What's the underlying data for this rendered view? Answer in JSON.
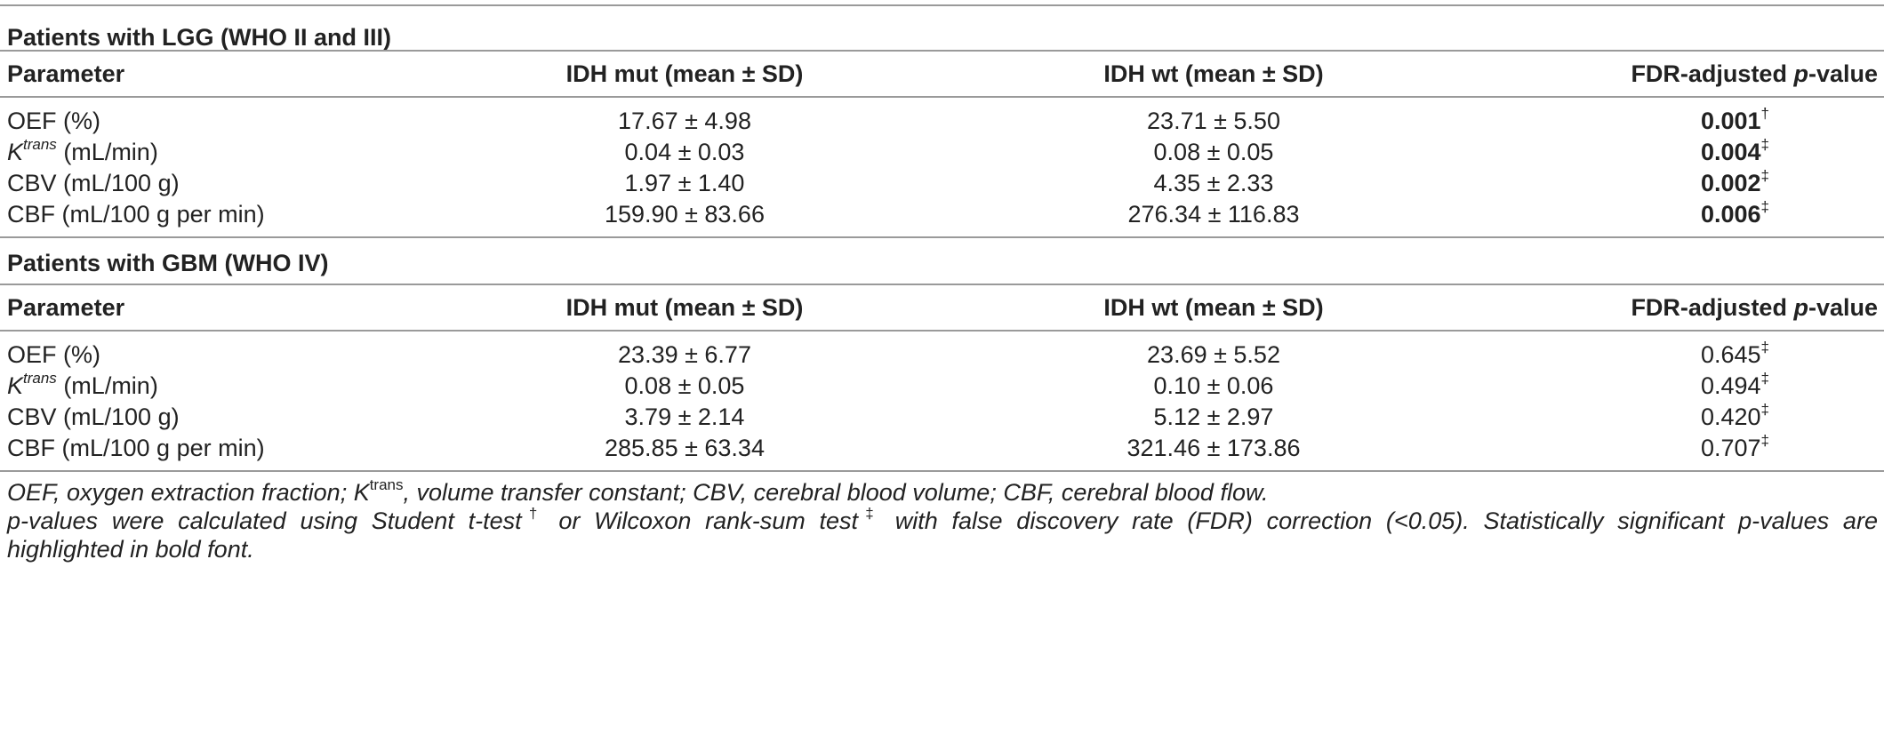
{
  "sections": [
    {
      "title": "Patients with LGG (WHO II and III)",
      "header": {
        "parameter": "Parameter",
        "mut": "IDH mut (mean ± SD)",
        "wt": "IDH wt (mean ± SD)",
        "p_prefix": "FDR-adjusted ",
        "p_italic": "p",
        "p_suffix": "-value"
      },
      "rows": [
        {
          "param": "OEF (%)",
          "mut": "17.67 ± 4.98",
          "wt": "23.71 ± 5.50",
          "p": "0.001",
          "mark": "†",
          "bold": true
        },
        {
          "param_k": "K",
          "param_sup": "trans",
          "param_rest": " (mL/min)",
          "mut": "0.04 ± 0.03",
          "wt": "0.08 ± 0.05",
          "p": "0.004",
          "mark": "‡",
          "bold": true
        },
        {
          "param": "CBV (mL/100 g)",
          "mut": "1.97 ± 1.40",
          "wt": "4.35 ± 2.33",
          "p": "0.002",
          "mark": "‡",
          "bold": true
        },
        {
          "param": "CBF (mL/100 g per min)",
          "mut": "159.90 ± 83.66",
          "wt": "276.34 ± 116.83",
          "p": "0.006",
          "mark": "‡",
          "bold": true
        }
      ]
    },
    {
      "title": "Patients with GBM (WHO IV)",
      "header": {
        "parameter": "Parameter",
        "mut": "IDH mut (mean ± SD)",
        "wt": "IDH wt (mean ± SD)",
        "p_prefix": "FDR-adjusted ",
        "p_italic": "p",
        "p_suffix": "-value"
      },
      "rows": [
        {
          "param": "OEF (%)",
          "mut": "23.39 ± 6.77",
          "wt": "23.69 ± 5.52",
          "p": "0.645",
          "mark": "‡",
          "bold": false
        },
        {
          "param_k": "K",
          "param_sup": "trans",
          "param_rest": " (mL/min)",
          "mut": "0.08 ± 0.05",
          "wt": "0.10 ± 0.06",
          "p": "0.494",
          "mark": "‡",
          "bold": false
        },
        {
          "param": "CBV (mL/100 g)",
          "mut": "3.79 ± 2.14",
          "wt": "5.12 ± 2.97",
          "p": "0.420",
          "mark": "‡",
          "bold": false
        },
        {
          "param": "CBF (mL/100 g per min)",
          "mut": "285.85 ± 63.34",
          "wt": "321.46 ± 173.86",
          "p": "0.707",
          "mark": "‡",
          "bold": false
        }
      ]
    }
  ],
  "footnotes": {
    "line1_a": "OEF, oxygen extraction fraction; K",
    "line1_sup": "trans",
    "line1_b": ", volume transfer constant; CBV, cerebral blood volume; CBF, cerebral blood flow.",
    "line2_a": "p-values were calculated using Student t-test",
    "line2_dagger": "†",
    "line2_b": " or Wilcoxon rank-sum test",
    "line2_ddagger": "‡",
    "line2_c": " with false discovery rate (FDR) correction (<0.05). Statistically significant p-values are",
    "line3": "highlighted in bold font."
  }
}
